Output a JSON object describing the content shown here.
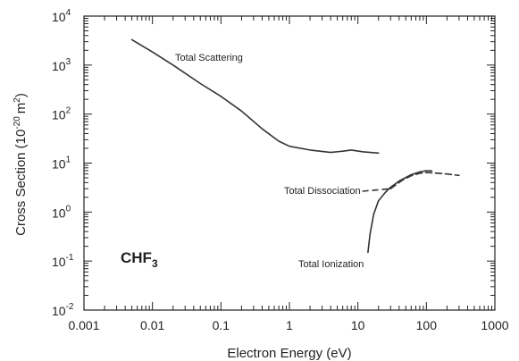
{
  "chart_data": {
    "type": "line",
    "xlabel": "Electron Energy (eV)",
    "ylabel": "Cross Section (10",
    "ylabel_exp": "-20",
    "ylabel_unit": "m",
    "ylabel_unit_exp": "2",
    "ylabel_close": ")",
    "x_scale": "log",
    "y_scale": "log",
    "xlim": [
      0.001,
      1000
    ],
    "ylim": [
      0.01,
      10000
    ],
    "x_ticks": [
      {
        "value": 0.001,
        "label": "0.001"
      },
      {
        "value": 0.01,
        "label": "0.01"
      },
      {
        "value": 0.1,
        "label": "0.1"
      },
      {
        "value": 1,
        "label": "1"
      },
      {
        "value": 10,
        "label": "10"
      },
      {
        "value": 100,
        "label": "100"
      },
      {
        "value": 1000,
        "label": "1000"
      }
    ],
    "y_ticks": [
      {
        "value": 0.01,
        "base": "10",
        "exp": "-2"
      },
      {
        "value": 0.1,
        "base": "10",
        "exp": "-1"
      },
      {
        "value": 1,
        "base": "10",
        "exp": "0"
      },
      {
        "value": 10,
        "base": "10",
        "exp": "1"
      },
      {
        "value": 100,
        "base": "10",
        "exp": "2"
      },
      {
        "value": 1000,
        "base": "10",
        "exp": "3"
      },
      {
        "value": 10000,
        "base": "10",
        "exp": "4"
      }
    ],
    "grid": false,
    "gas_label": {
      "base": "CHF",
      "sub": "3"
    },
    "series": [
      {
        "name": "Total Scattering",
        "style": "solid",
        "x": [
          0.005,
          0.01,
          0.02,
          0.05,
          0.1,
          0.2,
          0.4,
          0.7,
          1,
          2,
          4,
          6,
          8,
          12,
          20
        ],
        "y": [
          3300,
          1850,
          1000,
          420,
          230,
          115,
          50,
          28,
          22,
          18.5,
          16.5,
          17.5,
          18.5,
          17,
          16
        ]
      },
      {
        "name": "Total Dissociation",
        "style": "dashed",
        "x": [
          30,
          45,
          60,
          80,
          100,
          150,
          200,
          300
        ],
        "y": [
          3.0,
          4.5,
          5.5,
          6.2,
          6.4,
          6.2,
          6.0,
          5.6
        ]
      },
      {
        "name": "Total Ionization",
        "style": "solid",
        "x": [
          14,
          15,
          17,
          20,
          25,
          30,
          40,
          60,
          80,
          100,
          120
        ],
        "y": [
          0.15,
          0.35,
          0.9,
          1.7,
          2.5,
          3.2,
          4.3,
          5.8,
          6.6,
          7.0,
          6.9
        ]
      }
    ],
    "annotations": [
      {
        "text": "Total Scattering",
        "series": "Total Scattering"
      },
      {
        "text": "Total Dissociation",
        "series": "Total Dissociation"
      },
      {
        "text": "Total Ionization",
        "series": "Total Ionization"
      }
    ]
  }
}
